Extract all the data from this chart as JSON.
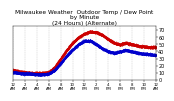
{
  "title": "Milwaukee Weather  Outdoor Temp / Dew Point\nby Minute\n(24 Hours) (Alternate)",
  "title_fontsize": 4.2,
  "line_color_temp": "#cc0000",
  "line_color_dew": "#0000cc",
  "bg_color": "#ffffff",
  "ylim": [
    0,
    75
  ],
  "yticks": [
    0,
    10,
    20,
    30,
    40,
    50,
    60,
    70
  ],
  "ylabel_fontsize": 3.5,
  "xlabel_fontsize": 2.8,
  "grid_color": "#aaaaaa",
  "num_points": 1440,
  "temp_keypoints": [
    [
      0,
      14
    ],
    [
      1,
      12
    ],
    [
      2,
      11
    ],
    [
      3,
      10
    ],
    [
      4,
      10
    ],
    [
      5,
      10
    ],
    [
      6,
      11
    ],
    [
      7,
      18
    ],
    [
      8,
      30
    ],
    [
      9,
      42
    ],
    [
      10,
      52
    ],
    [
      11,
      60
    ],
    [
      12,
      65
    ],
    [
      13,
      68
    ],
    [
      14,
      67
    ],
    [
      15,
      63
    ],
    [
      16,
      57
    ],
    [
      17,
      52
    ],
    [
      18,
      50
    ],
    [
      19,
      52
    ],
    [
      20,
      50
    ],
    [
      21,
      48
    ],
    [
      22,
      47
    ],
    [
      23,
      46
    ],
    [
      24,
      46
    ]
  ],
  "dew_keypoints": [
    [
      0,
      11
    ],
    [
      1,
      10
    ],
    [
      2,
      9
    ],
    [
      3,
      9
    ],
    [
      4,
      8
    ],
    [
      5,
      8
    ],
    [
      6,
      9
    ],
    [
      7,
      14
    ],
    [
      8,
      24
    ],
    [
      9,
      34
    ],
    [
      10,
      43
    ],
    [
      11,
      50
    ],
    [
      12,
      55
    ],
    [
      13,
      55
    ],
    [
      14,
      50
    ],
    [
      15,
      44
    ],
    [
      16,
      40
    ],
    [
      17,
      38
    ],
    [
      18,
      40
    ],
    [
      19,
      42
    ],
    [
      20,
      40
    ],
    [
      21,
      38
    ],
    [
      22,
      37
    ],
    [
      23,
      36
    ],
    [
      24,
      35
    ]
  ]
}
